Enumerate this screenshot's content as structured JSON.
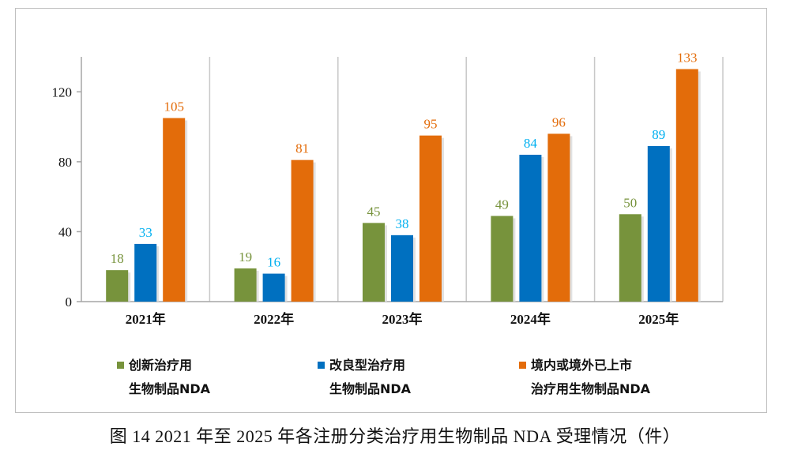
{
  "chart_data": {
    "type": "bar",
    "categories": [
      "2021年",
      "2022年",
      "2023年",
      "2024年",
      "2025年"
    ],
    "series": [
      {
        "name": "创新治疗用生物制品NDA",
        "name_lines": [
          "创新治疗用",
          "生物制品NDA"
        ],
        "values": [
          18,
          19,
          45,
          49,
          50
        ],
        "color": "#77933c"
      },
      {
        "name": "改良型治疗用生物制品NDA",
        "name_lines": [
          "改良型治疗用",
          "生物制品NDA"
        ],
        "values": [
          33,
          16,
          38,
          84,
          89
        ],
        "color": "#0070c0"
      },
      {
        "name": "境内或境外已上市治疗用生物制品NDA",
        "name_lines": [
          "境内或境外已上市",
          "治疗用生物制品NDA"
        ],
        "values": [
          105,
          81,
          95,
          96,
          133
        ],
        "color": "#e36c0a"
      }
    ],
    "label_colors": [
      "#77933c",
      "#00b0f0",
      "#e36c0a"
    ],
    "yticks": [
      0,
      40,
      80,
      120
    ],
    "ylim": [
      0,
      140
    ],
    "grid": false,
    "legend_position": "bottom"
  },
  "caption": "图 14   2021 年至 2025 年各注册分类治疗用生物制品 NDA 受理情况（件）"
}
